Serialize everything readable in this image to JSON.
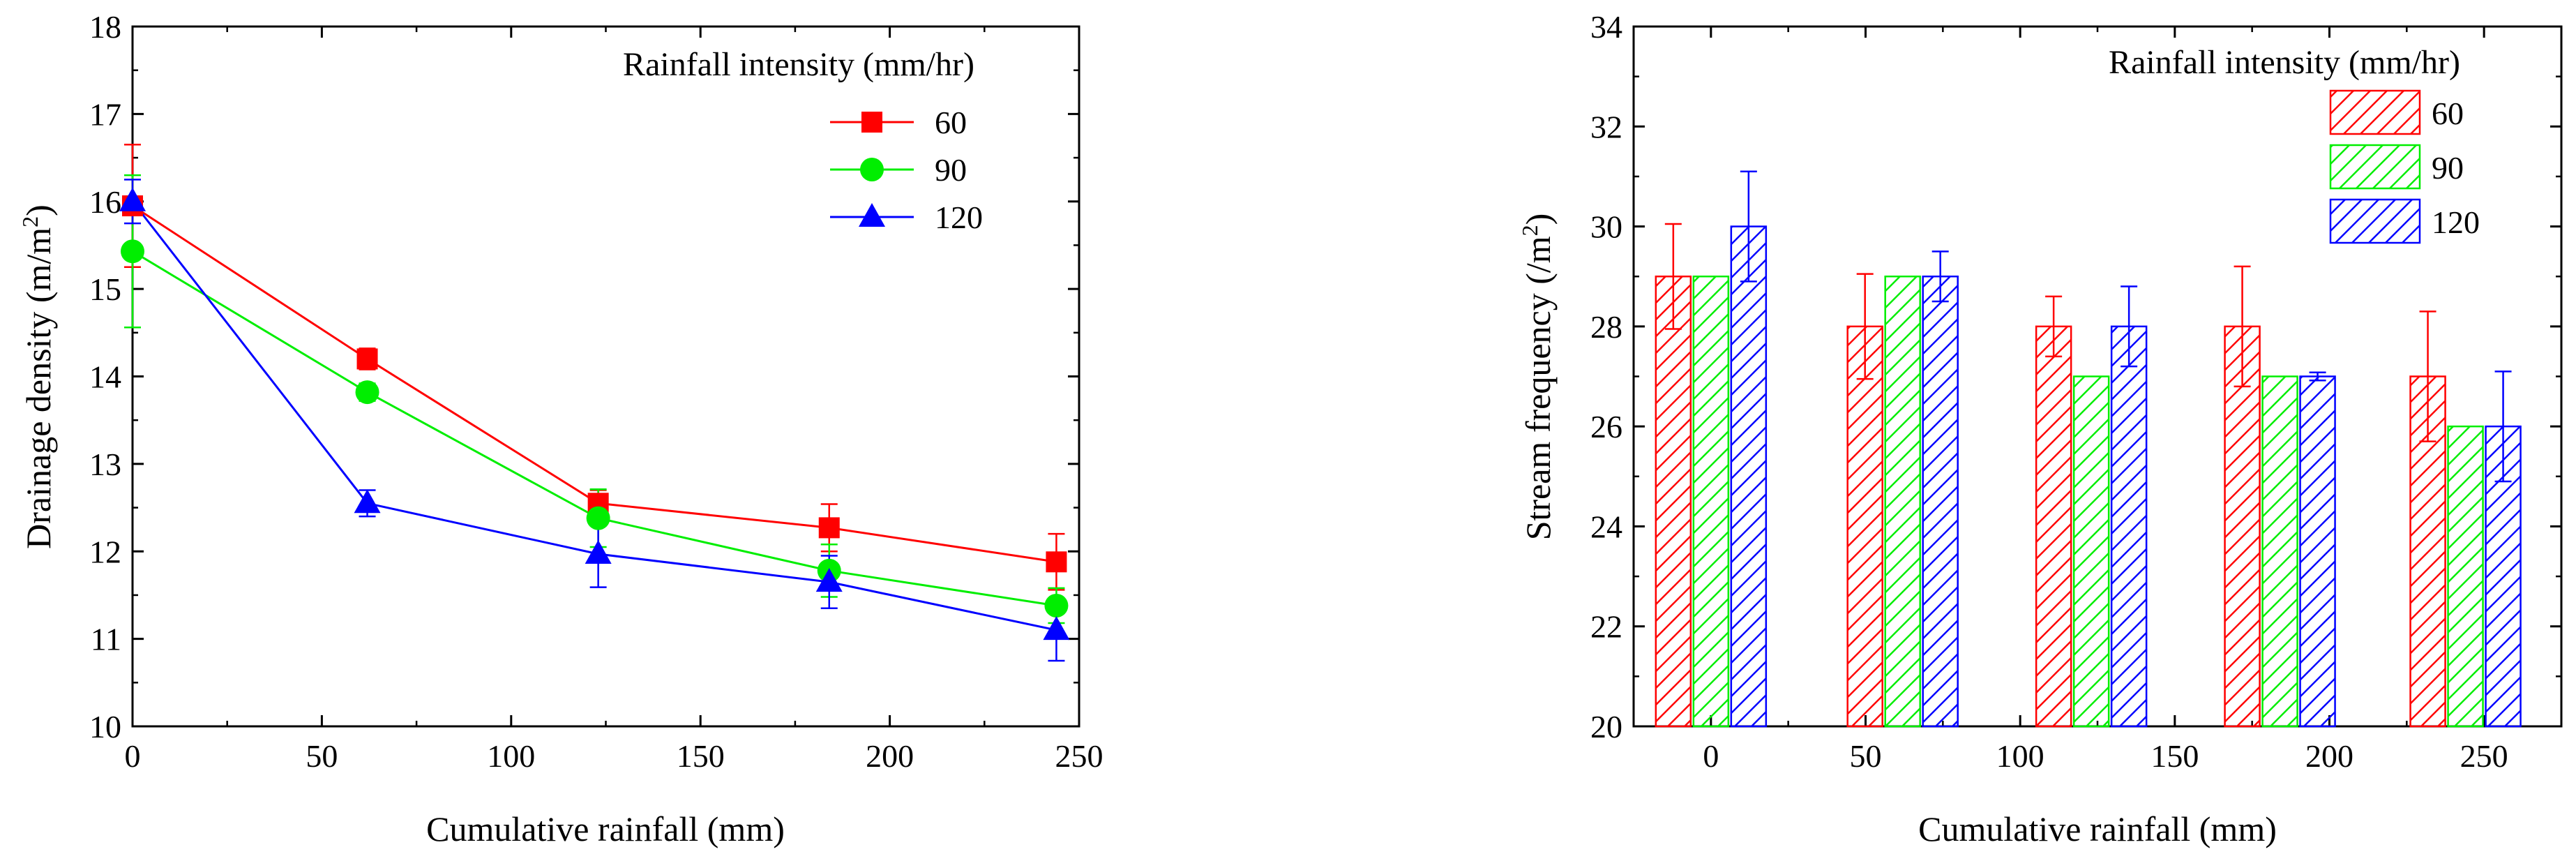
{
  "chart_data": [
    {
      "type": "line",
      "xlabel": "Cumulative rainfall (mm)",
      "ylabel_text": "Drainage density (m/m",
      "ylabel_sup": "2",
      "ylabel_close": ")",
      "xlim": [
        0,
        250
      ],
      "ylim": [
        10,
        18
      ],
      "xticks": [
        0,
        50,
        100,
        150,
        200,
        250
      ],
      "yticks": [
        10,
        11,
        12,
        13,
        14,
        15,
        16,
        17,
        18
      ],
      "legend_title": "Rainfall intensity (mm/hr)",
      "legend_position": "top-right",
      "series": [
        {
          "name": "60",
          "color": "#ff0000",
          "marker": "square",
          "x": [
            0,
            62,
            123,
            184,
            244
          ],
          "y": [
            15.95,
            14.2,
            12.55,
            12.27,
            11.88
          ],
          "err": [
            0.7,
            0.12,
            0.15,
            0.27,
            0.32
          ]
        },
        {
          "name": "90",
          "color": "#00ee00",
          "marker": "circle",
          "x": [
            0,
            62,
            123,
            184,
            244
          ],
          "y": [
            15.43,
            13.82,
            12.38,
            11.78,
            11.38
          ],
          "err": [
            0.87,
            0.1,
            0.33,
            0.3,
            0.2
          ]
        },
        {
          "name": "120",
          "color": "#0000ff",
          "marker": "triangle",
          "x": [
            0,
            62,
            123,
            184,
            244
          ],
          "y": [
            16.0,
            12.55,
            11.97,
            11.65,
            11.1
          ],
          "err": [
            0.25,
            0.15,
            0.38,
            0.3,
            0.35
          ]
        }
      ]
    },
    {
      "type": "bar",
      "xlabel": "Cumulative rainfall (mm)",
      "ylabel_text": "Stream frequency (/m",
      "ylabel_sup": "2",
      "ylabel_close": ")",
      "xlim": [
        -25,
        275
      ],
      "ylim": [
        20,
        34
      ],
      "xticks": [
        0,
        50,
        100,
        150,
        200,
        250
      ],
      "yticks": [
        20,
        22,
        24,
        26,
        28,
        30,
        32,
        34
      ],
      "legend_title": "Rainfall intensity (mm/hr)",
      "legend_position": "top-right",
      "groups": [
        0,
        62,
        123,
        184,
        244
      ],
      "series": [
        {
          "name": "60",
          "color": "#ff0000",
          "values": [
            29,
            28,
            28,
            28,
            27
          ],
          "err": [
            1.05,
            1.05,
            0.6,
            1.2,
            1.3
          ]
        },
        {
          "name": "90",
          "color": "#00ee00",
          "values": [
            29,
            29,
            27,
            27,
            26
          ],
          "err": [
            0,
            0,
            0,
            0,
            0
          ]
        },
        {
          "name": "120",
          "color": "#0000ff",
          "values": [
            30,
            29,
            28,
            27,
            26
          ],
          "err": [
            1.1,
            0.5,
            0.8,
            0.08,
            1.1
          ]
        }
      ]
    }
  ]
}
